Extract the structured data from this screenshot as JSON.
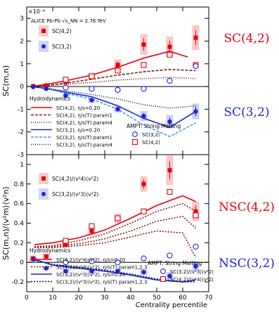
{
  "chart_data": [
    {
      "type": "scatter",
      "panel": "top",
      "ylabel": "SC(m,n)",
      "yexp": "×10⁻⁶",
      "system": "ALICE Pb-Pb √s_NN = 2.76 TeV",
      "ylim": [
        -3,
        3.5
      ],
      "yticks": [
        "-3",
        "-2",
        "-1",
        "0",
        "1",
        "2",
        "3"
      ],
      "xlim": [
        0,
        70
      ],
      "side_labels": [
        {
          "text": "SC(4,2)",
          "color": "#e8000b"
        },
        {
          "text": "SC(3,2)",
          "color": "#1f23d6"
        }
      ],
      "data_legend": [
        "SC(4,2)",
        "SC(3,2)"
      ],
      "hydro_title": "Hydrodynamics",
      "hydro_legend": [
        {
          "label": "SC(4,2), η/s=0.20",
          "color": "#e8000b",
          "dash": ""
        },
        {
          "label": "SC(4,2), η/s(T) param1",
          "color": "#8b1a1a",
          "dash": "4,2"
        },
        {
          "label": "SC(4,2), η/s(T) param4",
          "color": "#5a1010",
          "dash": "1,2"
        },
        {
          "label": "SC(3,2), η/s=0.20",
          "color": "#1f23d6",
          "dash": ""
        },
        {
          "label": "SC(3,2), η/s(T) param1",
          "color": "#3fa0e0",
          "dash": "4,2"
        },
        {
          "label": "SC(3,2), η/s(T) param4",
          "color": "#101060",
          "dash": "1,2"
        }
      ],
      "ampt_title": "AMPT: String Melting",
      "ampt_legend": [
        "SC(3,2)",
        "SC(4,2)"
      ],
      "series": [
        {
          "name": "SC(4,2)",
          "marker": "square",
          "color": "#e8000b",
          "x": [
            2.5,
            7.5,
            15,
            25,
            35,
            45,
            55,
            65
          ],
          "y": [
            0.02,
            0.05,
            0.2,
            0.45,
            0.95,
            1.85,
            1.75,
            2.15
          ],
          "err": [
            0.05,
            0.05,
            0.1,
            0.15,
            0.25,
            0.45,
            0.45,
            0.55
          ]
        },
        {
          "name": "SC(3,2)",
          "marker": "circle",
          "color": "#1f23d6",
          "x": [
            2.5,
            7.5,
            15,
            25,
            35,
            45,
            55,
            65
          ],
          "y": [
            -0.02,
            -0.1,
            -0.4,
            -0.6,
            -1.0,
            -1.3,
            -1.55,
            -1.1
          ],
          "err": [
            0.03,
            0.05,
            0.08,
            0.12,
            0.15,
            0.22,
            0.3,
            0.35
          ]
        },
        {
          "name": "AMPT SC(4,2)",
          "marker": "open-square",
          "color": "#e8000b",
          "x": [
            15,
            25,
            35,
            45,
            55,
            65
          ],
          "y": [
            0.3,
            0.45,
            0.7,
            0.95,
            1.4,
            0.95
          ]
        },
        {
          "name": "AMPT SC(3,2)",
          "marker": "open-circle",
          "color": "#1f23d6",
          "x": [
            15,
            25,
            35,
            45,
            55,
            65
          ],
          "y": [
            -0.05,
            -0.1,
            -0.15,
            -0.1,
            0.25,
            0.9
          ]
        },
        {
          "name": "SC(4,2), η/s=0.20",
          "style": "curve",
          "color": "#e8000b",
          "dash": "",
          "x": [
            3,
            8,
            15,
            25,
            35,
            45,
            55,
            62
          ],
          "y": [
            0.02,
            0.1,
            0.25,
            0.5,
            0.85,
            1.25,
            1.55,
            1.3
          ]
        },
        {
          "name": "SC(4,2), η/s(T) param1",
          "style": "curve",
          "color": "#8b1a1a",
          "dash": "4,2",
          "x": [
            3,
            8,
            15,
            25,
            35,
            45,
            55,
            65
          ],
          "y": [
            0.02,
            0.05,
            0.15,
            0.32,
            0.5,
            0.65,
            0.75,
            0.7
          ]
        },
        {
          "name": "SC(4,2), η/s(T) param4",
          "style": "curve",
          "color": "#5a1010",
          "dash": "1,2",
          "x": [
            3,
            8,
            15,
            25,
            35,
            45,
            55,
            65
          ],
          "y": [
            0.02,
            0.04,
            0.1,
            0.18,
            0.28,
            0.35,
            0.4,
            0.35
          ]
        },
        {
          "name": "SC(3,2), η/s=0.20",
          "style": "curve",
          "color": "#1f23d6",
          "dash": "",
          "x": [
            3,
            8,
            15,
            25,
            35,
            45,
            55,
            65
          ],
          "y": [
            -0.02,
            -0.1,
            -0.25,
            -0.45,
            -0.85,
            -1.4,
            -1.8,
            -1.1
          ]
        },
        {
          "name": "SC(3,2), η/s(T) param1",
          "style": "curve",
          "color": "#3fa0e0",
          "dash": "4,2",
          "x": [
            3,
            8,
            15,
            25,
            35,
            45,
            55,
            65
          ],
          "y": [
            -0.02,
            -0.1,
            -0.3,
            -0.55,
            -1.0,
            -1.7,
            -2.2,
            -1.6
          ]
        },
        {
          "name": "SC(3,2), η/s(T) param4",
          "style": "curve",
          "color": "#101060",
          "dash": "1,2",
          "x": [
            3,
            8,
            15,
            25,
            35,
            45,
            55,
            65
          ],
          "y": [
            -0.02,
            -0.08,
            -0.2,
            -0.35,
            -0.55,
            -0.8,
            -0.95,
            -0.85
          ]
        }
      ]
    },
    {
      "type": "scatter",
      "panel": "bottom",
      "ylabel": "SC(m,n)/⟨v²m⟩⟨v²n⟩",
      "xlabel": "Centrality percentile",
      "ylim": [
        -0.3,
        1.1
      ],
      "yticks": [
        "-0.2",
        "0",
        "0.2",
        "0.4",
        "0.6",
        "0.8",
        "1"
      ],
      "xticks": [
        "0",
        "10",
        "20",
        "30",
        "40",
        "50",
        "60",
        "70"
      ],
      "xlim": [
        0,
        70
      ],
      "side_labels": [
        {
          "text": "NSC(4,2)",
          "color": "#e8000b"
        },
        {
          "text": "NSC(3,2)",
          "color": "#1f23d6"
        }
      ],
      "data_legend": [
        "SC(4,2)/⟨v²4⟩⟨v²2⟩",
        "SC(3,2)/⟨v²3⟩⟨v²2⟩"
      ],
      "hydro_title": "Hydrodynamics",
      "hydro_legend": [
        {
          "label": "SC(4,2)/⟨v²4⟩⟨v²2⟩, η/s=0.20",
          "color": "#e8000b",
          "dash": ""
        },
        {
          "label": "SC(4,2)/⟨v²4⟩⟨v²2⟩, η/s(T) param1,2,3",
          "color": "#8b1a1a",
          "dash": "2,2"
        },
        {
          "label": "SC(3,2)/⟨v²3⟩⟨v²2⟩, η/s=0.20",
          "color": "#1f23d6",
          "dash": ""
        },
        {
          "label": "SC(3,2)/⟨v²3⟩⟨v²2⟩, η/s(T) param1,2,3",
          "color": "#101060",
          "dash": "2,2"
        }
      ],
      "ampt_title": "AMPT: String Melting",
      "ampt_legend": [
        "SC(3,2)/⟨v²3⟩⟨v²2⟩",
        "SC(4,2)/⟨v²4⟩⟨v²2⟩"
      ],
      "series": [
        {
          "name": "NSC(4,2)",
          "marker": "square",
          "color": "#e8000b",
          "x": [
            2.5,
            7.5,
            15,
            25,
            35,
            45,
            55,
            65
          ],
          "y": [
            0.04,
            0.06,
            0.18,
            0.32,
            0.45,
            0.8,
            0.94,
            0.52
          ],
          "err": [
            0.03,
            0.03,
            0.03,
            0.04,
            0.05,
            0.08,
            0.15,
            0.1
          ]
        },
        {
          "name": "NSC(3,2)",
          "marker": "circle",
          "color": "#1f23d6",
          "x": [
            2.5,
            7.5,
            15,
            25,
            35,
            45,
            55,
            65
          ],
          "y": [
            0.03,
            -0.06,
            -0.09,
            -0.09,
            -0.09,
            -0.1,
            -0.14,
            -0.04
          ],
          "err": [
            0.02,
            0.02,
            0.02,
            0.02,
            0.02,
            0.03,
            0.04,
            0.05
          ]
        },
        {
          "name": "AMPT NSC(4,2)",
          "marker": "open-square",
          "color": "#e8000b",
          "x": [
            15,
            25,
            35,
            45,
            55,
            65
          ],
          "y": [
            0.22,
            0.37,
            0.45,
            0.52,
            0.72,
            0.48
          ]
        },
        {
          "name": "AMPT NSC(3,2)",
          "marker": "open-circle",
          "color": "#1f23d6",
          "x": [
            15,
            25,
            35,
            45,
            55,
            65
          ],
          "y": [
            0.0,
            0.01,
            0.0,
            0.04,
            0.07,
            0.16
          ]
        },
        {
          "name": "NSC(4,2) hydro 0.20",
          "style": "curve",
          "color": "#e8000b",
          "dash": "",
          "x": [
            3,
            10,
            20,
            30,
            40,
            50,
            60,
            65
          ],
          "y": [
            0.18,
            0.2,
            0.25,
            0.33,
            0.45,
            0.58,
            0.68,
            0.62
          ]
        },
        {
          "name": "NSC(4,2) hydro p1",
          "style": "curve",
          "color": "#8b1a1a",
          "dash": "2,2",
          "x": [
            3,
            10,
            20,
            30,
            40,
            50,
            60,
            65
          ],
          "y": [
            0.16,
            0.17,
            0.22,
            0.29,
            0.4,
            0.52,
            0.6,
            0.52
          ]
        },
        {
          "name": "NSC(4,2) hydro p2",
          "style": "curve",
          "color": "#8b1a1a",
          "dash": "2,2",
          "x": [
            3,
            10,
            20,
            30,
            40,
            50,
            60,
            65
          ],
          "y": [
            0.16,
            0.16,
            0.19,
            0.24,
            0.32,
            0.42,
            0.47,
            0.35
          ]
        },
        {
          "name": "NSC(4,2) hydro p3",
          "style": "curve",
          "color": "#8b1a1a",
          "dash": "2,2",
          "x": [
            3,
            10,
            20,
            30,
            40,
            50,
            60,
            65
          ],
          "y": [
            0.15,
            0.15,
            0.17,
            0.2,
            0.26,
            0.32,
            0.3,
            0.05
          ]
        },
        {
          "name": "NSC(3,2) hydro 0.20",
          "style": "curve",
          "color": "#1f23d6",
          "dash": "",
          "x": [
            3,
            10,
            20,
            30,
            40,
            50,
            60,
            65
          ],
          "y": [
            0.03,
            -0.03,
            -0.06,
            -0.09,
            -0.13,
            -0.18,
            -0.2,
            -0.18
          ]
        },
        {
          "name": "NSC(3,2) hydro p1",
          "style": "curve",
          "color": "#101060",
          "dash": "2,2",
          "x": [
            3,
            10,
            20,
            30,
            40,
            50,
            60,
            65
          ],
          "y": [
            0.02,
            -0.02,
            -0.05,
            -0.08,
            -0.12,
            -0.17,
            -0.2,
            -0.2
          ]
        }
      ]
    }
  ]
}
